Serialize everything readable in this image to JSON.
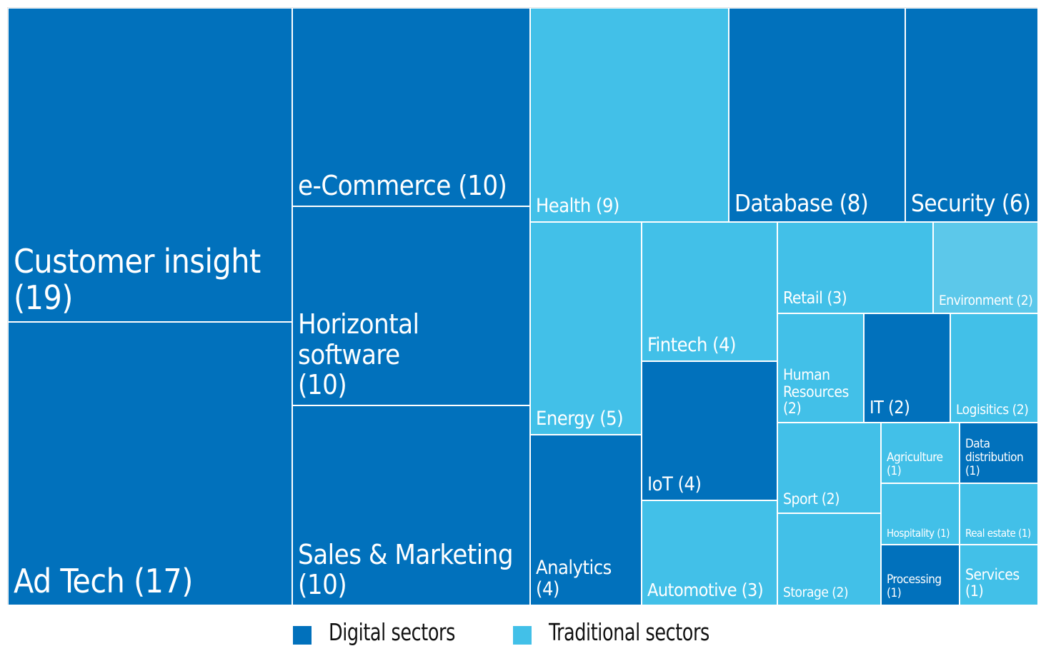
{
  "colors": {
    "digital": "#0171bc",
    "traditional": "#42c0e8",
    "traditional_light": "#5cc8ea"
  },
  "legend": {
    "digital_label": "Digital sectors",
    "traditional_label": "Traditional sectors"
  },
  "chart_data": {
    "type": "treemap",
    "title": "",
    "legend_position": "bottom-center",
    "items": [
      {
        "label": "Customer insight\n(19)",
        "name": "Customer insight",
        "value": 19,
        "group": "digital"
      },
      {
        "label": "Ad Tech (17)",
        "name": "Ad Tech",
        "value": 17,
        "group": "digital"
      },
      {
        "label": "e-Commerce (10)",
        "name": "e-Commerce",
        "value": 10,
        "group": "digital"
      },
      {
        "label": "Horizontal software\n(10)",
        "name": "Horizontal software",
        "value": 10,
        "group": "digital"
      },
      {
        "label": "Sales & Marketing\n(10)",
        "name": "Sales & Marketing",
        "value": 10,
        "group": "digital"
      },
      {
        "label": "Health (9)",
        "name": "Health",
        "value": 9,
        "group": "traditional"
      },
      {
        "label": "Database (8)",
        "name": "Database",
        "value": 8,
        "group": "digital"
      },
      {
        "label": "Security (6)",
        "name": "Security",
        "value": 6,
        "group": "digital"
      },
      {
        "label": "Energy (5)",
        "name": "Energy",
        "value": 5,
        "group": "traditional"
      },
      {
        "label": "Analytics (4)",
        "name": "Analytics",
        "value": 4,
        "group": "digital"
      },
      {
        "label": "Fintech (4)",
        "name": "Fintech",
        "value": 4,
        "group": "traditional"
      },
      {
        "label": "IoT (4)",
        "name": "IoT",
        "value": 4,
        "group": "digital"
      },
      {
        "label": "Automotive (3)",
        "name": "Automotive",
        "value": 3,
        "group": "traditional"
      },
      {
        "label": "Retail (3)",
        "name": "Retail",
        "value": 3,
        "group": "traditional"
      },
      {
        "label": "Environment (2)",
        "name": "Environment",
        "value": 2,
        "group": "traditional"
      },
      {
        "label": "Human\nResources\n(2)",
        "name": "Human Resources",
        "value": 2,
        "group": "traditional"
      },
      {
        "label": "IT (2)",
        "name": "IT",
        "value": 2,
        "group": "digital"
      },
      {
        "label": "Logisitics (2)",
        "name": "Logisitics",
        "value": 2,
        "group": "traditional"
      },
      {
        "label": "Sport (2)",
        "name": "Sport",
        "value": 2,
        "group": "traditional"
      },
      {
        "label": "Storage (2)",
        "name": "Storage",
        "value": 2,
        "group": "traditional"
      },
      {
        "label": "Agriculture\n(1)",
        "name": "Agriculture",
        "value": 1,
        "group": "traditional"
      },
      {
        "label": "Data\ndistribution\n(1)",
        "name": "Data distribution",
        "value": 1,
        "group": "digital"
      },
      {
        "label": "Hospitality (1)",
        "name": "Hospitality",
        "value": 1,
        "group": "traditional"
      },
      {
        "label": "Real estate (1)",
        "name": "Real estate",
        "value": 1,
        "group": "traditional"
      },
      {
        "label": "Processing\n(1)",
        "name": "Processing",
        "value": 1,
        "group": "digital"
      },
      {
        "label": "Services\n(1)",
        "name": "Services",
        "value": 1,
        "group": "traditional"
      }
    ]
  }
}
